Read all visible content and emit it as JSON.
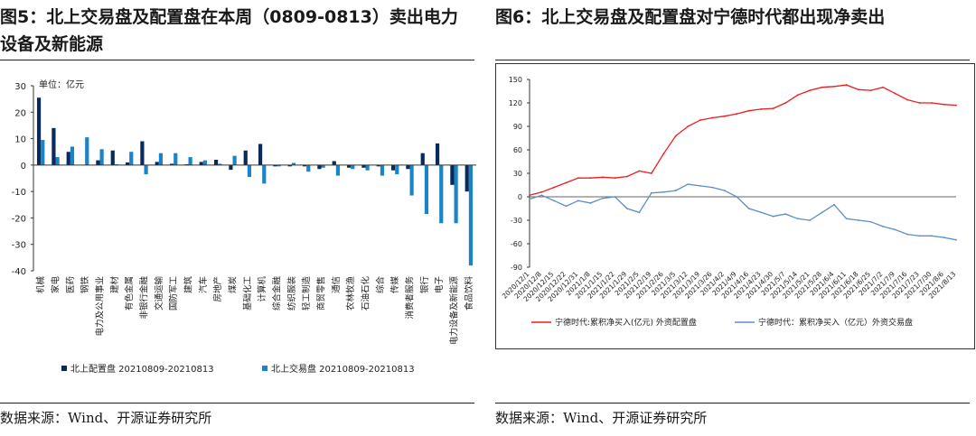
{
  "left": {
    "title": "图5：北上交易盘及配置盘在本周（0809-0813）卖出电力设备及新能源",
    "source": "数据来源：Wind、开源证券研究所",
    "colors": {
      "config": "#0a2a5c",
      "trade": "#1a84c7",
      "axis": "#333333"
    },
    "chart_data": {
      "type": "bar",
      "unit_note": "单位：亿元",
      "ylim": [
        -40,
        30
      ],
      "yticks": [
        "30",
        "20",
        "10",
        "0",
        "-10",
        "-20",
        "-30",
        "-40"
      ],
      "categories": [
        "机械",
        "家电",
        "医药",
        "钢铁",
        "电力及公用事业",
        "建材",
        "有色金属",
        "非银行金融",
        "交通运输",
        "国防军工",
        "建筑",
        "汽车",
        "房地产",
        "煤炭",
        "基础化工",
        "计算机",
        "综合金融",
        "纺织服装",
        "轻工制造",
        "商贸零售",
        "通信",
        "农林牧渔",
        "石油石化",
        "综合",
        "传媒",
        "消费者服务",
        "银行",
        "电子",
        "电力设备及新能源",
        "食品饮料"
      ],
      "series": [
        {
          "name": "北上配置盘 20210809-20210813",
          "values": [
            25.5,
            14.0,
            5.0,
            0.0,
            1.8,
            5.5,
            1.0,
            9.0,
            1.2,
            0.5,
            0.3,
            1.2,
            2.0,
            -1.8,
            5.5,
            8.0,
            -0.5,
            -0.5,
            -0.5,
            -1.5,
            1.5,
            -1.0,
            -1.0,
            -0.5,
            -2.0,
            -1.5,
            4.5,
            8.2,
            -7.5,
            -10.0
          ]
        },
        {
          "name": "北上交易盘 20210809-20210813",
          "values": [
            9.5,
            3.0,
            7.0,
            10.5,
            6.0,
            0.3,
            5.0,
            -3.5,
            4.5,
            4.5,
            3.0,
            1.8,
            0.5,
            3.5,
            -4.5,
            -7.0,
            -0.5,
            0.8,
            -2.5,
            -1.0,
            -4.0,
            -1.5,
            -2.0,
            -4.0,
            -3.5,
            -11.5,
            -18.5,
            -22.0,
            -22.0,
            -38.0
          ]
        }
      ]
    }
  },
  "right": {
    "title": "图6：北上交易盘及配置盘对宁德时代都出现净卖出",
    "source": "数据来源：Wind、开源证券研究所",
    "colors": {
      "config": "#ee1c1c",
      "trade": "#5b8fc5",
      "axis": "#333333"
    },
    "chart_data": {
      "type": "line",
      "ylim": [
        -90,
        150
      ],
      "yticks": [
        "150",
        "120",
        "90",
        "60",
        "30",
        "0",
        "-30",
        "-60",
        "-90"
      ],
      "x_labels": [
        "2020/12/1",
        "2020/12/8",
        "2020/12/15",
        "2020/12/22",
        "2020/12/31",
        "2021/1/8",
        "2021/1/15",
        "2021/1/22",
        "2021/1/29",
        "2021/2/5",
        "2021/2/19",
        "2021/2/26",
        "2021/3/5",
        "2021/3/12",
        "2021/3/19",
        "2021/3/26",
        "2021/4/2",
        "2021/4/9",
        "2021/4/16",
        "2021/4/23",
        "2021/4/30",
        "2021/5/7",
        "2021/5/14",
        "2021/5/21",
        "2021/5/28",
        "2021/6/4",
        "2021/6/11",
        "2021/6/18",
        "2021/6/25",
        "2021/7/2",
        "2021/7/9",
        "2021/7/16",
        "2021/7/23",
        "2021/7/30",
        "2021/8/6",
        "2021/8/13"
      ],
      "series": [
        {
          "name": "宁德时代:累积净买入(亿元) 外资配置盘",
          "values": [
            2,
            6,
            12,
            18,
            24,
            24,
            25,
            24,
            26,
            33,
            30,
            55,
            78,
            90,
            98,
            101,
            103,
            106,
            110,
            112,
            113,
            120,
            130,
            136,
            140,
            141,
            143,
            137,
            136,
            140,
            132,
            124,
            120,
            120,
            118,
            117
          ]
        },
        {
          "name": "宁德时代：累积净买入（亿元）外资交易盘",
          "values": [
            -3,
            2,
            -5,
            -12,
            -5,
            -8,
            -2,
            0,
            -15,
            -20,
            5,
            6,
            8,
            16,
            14,
            12,
            8,
            0,
            -15,
            -20,
            -25,
            -22,
            -28,
            -30,
            -20,
            -10,
            -28,
            -30,
            -32,
            -38,
            -42,
            -48,
            -50,
            -50,
            -52,
            -55
          ]
        }
      ]
    }
  }
}
